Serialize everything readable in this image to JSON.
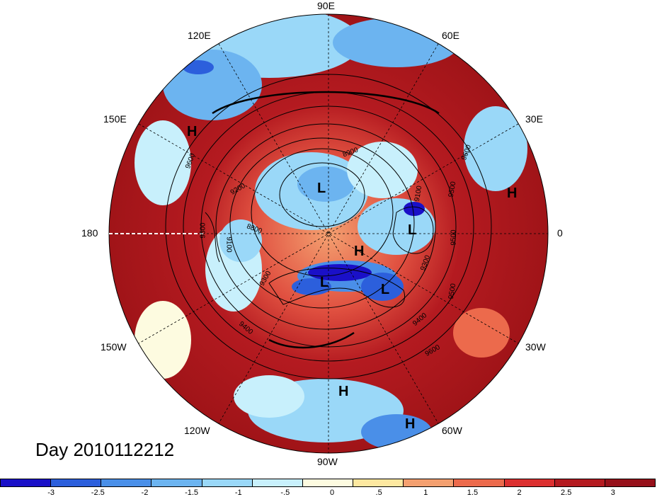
{
  "title": "Day 2010112212",
  "longitude_labels": [
    {
      "text": "90E",
      "id": "lon-90e"
    },
    {
      "text": "60E",
      "id": "lon-60e"
    },
    {
      "text": "30E",
      "id": "lon-30e"
    },
    {
      "text": "0",
      "id": "lon-0"
    },
    {
      "text": "30W",
      "id": "lon-30w"
    },
    {
      "text": "60W",
      "id": "lon-60w"
    },
    {
      "text": "90W",
      "id": "lon-90w"
    },
    {
      "text": "120W",
      "id": "lon-120w"
    },
    {
      "text": "150W",
      "id": "lon-150w"
    },
    {
      "text": "180",
      "id": "lon-180"
    },
    {
      "text": "150E",
      "id": "lon-150e"
    },
    {
      "text": "120E",
      "id": "lon-120e"
    }
  ],
  "pressure_centers": [
    "H",
    "H",
    "L",
    "L",
    "H",
    "L",
    "L",
    "H",
    "H"
  ],
  "contour_labels": [
    "9600",
    "9200",
    "8900",
    "9100",
    "9500",
    "9500",
    "8800",
    "9300",
    "9300",
    "9600",
    "9400",
    "9400",
    "9500",
    "9600",
    "9500",
    "9100"
  ],
  "colorbar": {
    "colors": [
      "#1a10c8",
      "#2c5fdc",
      "#4a8fe8",
      "#6cb4f0",
      "#9ad8f8",
      "#c8f0fc",
      "#fdfbe0",
      "#fde8a0",
      "#f4a070",
      "#ec6a4c",
      "#dc3030",
      "#b41a20",
      "#96101a"
    ],
    "ticks": [
      "-3",
      "-2.5",
      "-2",
      "-1.5",
      "-1",
      "-.5",
      "0",
      ".5",
      "1",
      "1.5",
      "2",
      "2.5",
      "3"
    ]
  }
}
